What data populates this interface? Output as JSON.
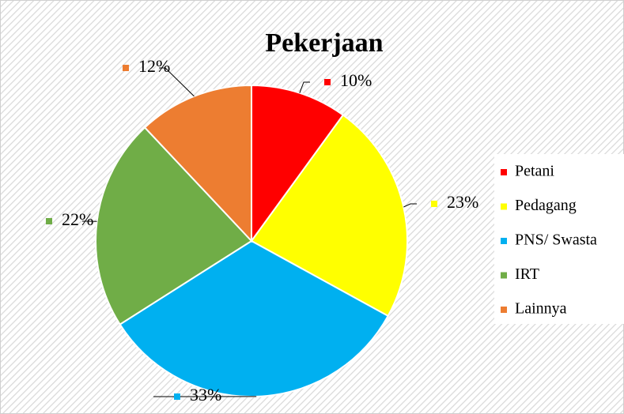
{
  "chart_data": {
    "type": "pie",
    "title": "Pekerjaan",
    "categories": [
      "Petani",
      "Pedagang",
      "PNS/ Swasta",
      "IRT",
      "Lainnya"
    ],
    "values": [
      10,
      23,
      33,
      22,
      12
    ],
    "value_labels": [
      "10%",
      "23%",
      "33%",
      "22%",
      "12%"
    ],
    "colors": [
      "#ff0000",
      "#ffff00",
      "#00b0f0",
      "#70ad47",
      "#ed7d31"
    ],
    "legend": "right"
  }
}
